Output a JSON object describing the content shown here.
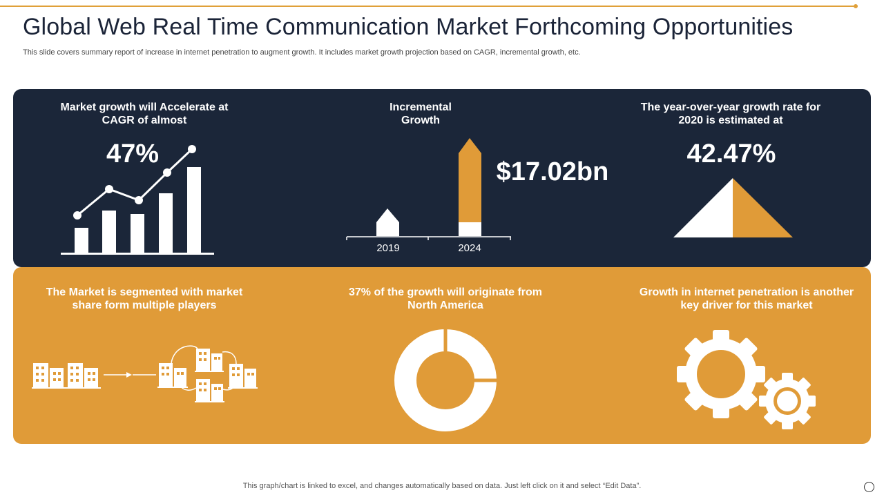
{
  "title": "Global Web Real Time Communication Market Forthcoming Opportunities",
  "subtitle": "This slide covers summary report of increase in internet penetration to augment growth. It includes market growth projection based on CAGR, incremental growth, etc.",
  "colors": {
    "dark": "#1b2639",
    "gold": "#e09b38",
    "white": "#ffffff"
  },
  "cards": {
    "cagr": {
      "label": "Market growth will Accelerate at CAGR of almost",
      "value": "47%",
      "icon": "bar-line-chart-icon"
    },
    "incremental": {
      "label": "Incremental Growth",
      "value": "$17.02bn",
      "years": [
        "2019",
        "2024"
      ],
      "icon": "arrow-bar-chart-icon"
    },
    "yoy": {
      "label": "The year-over-year growth rate for 2020 is estimated at",
      "value": "42.47%",
      "icon": "triangle-icon"
    },
    "segmented": {
      "label": "The Market is segmented with market share form multiple players",
      "icon": "buildings-icon"
    },
    "north_america": {
      "label": "37% of the growth will originate from North America",
      "icon": "donut-icon"
    },
    "penetration": {
      "label": "Growth in internet penetration is another key driver for this market",
      "icon": "gears-icon"
    }
  },
  "footer": "This graph/chart is linked to excel,  and changes automatically based on data. Just left click on it and select “Edit Data”."
}
